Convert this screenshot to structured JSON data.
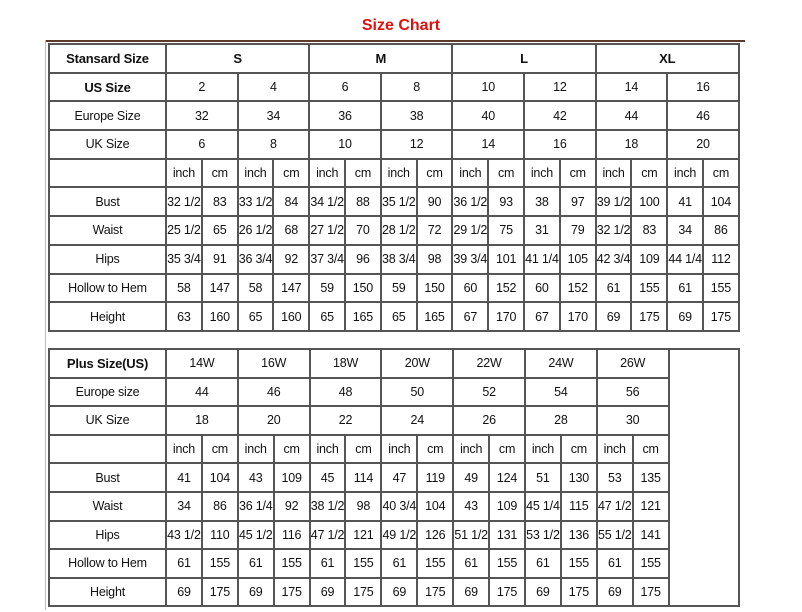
{
  "title": "Size Chart",
  "colors": {
    "title": "#e01010",
    "border": "#555555",
    "top_rule": "#5a3a2a"
  },
  "standard": {
    "header": "Stansard Size",
    "groups": [
      "S",
      "M",
      "L",
      "XL"
    ],
    "size_rows": [
      {
        "label": "US Size",
        "bold": true,
        "values": [
          "2",
          "4",
          "6",
          "8",
          "10",
          "12",
          "14",
          "16"
        ]
      },
      {
        "label": "Europe Size",
        "values": [
          "32",
          "34",
          "36",
          "38",
          "40",
          "42",
          "44",
          "46"
        ]
      },
      {
        "label": "UK Size",
        "values": [
          "6",
          "8",
          "10",
          "12",
          "14",
          "16",
          "18",
          "20"
        ]
      }
    ],
    "units": [
      "inch",
      "cm"
    ],
    "measurements": [
      {
        "label": "Bust",
        "values": [
          "32 1/2",
          "83",
          "33 1/2",
          "84",
          "34 1/2",
          "88",
          "35 1/2",
          "90",
          "36 1/2",
          "93",
          "38",
          "97",
          "39 1/2",
          "100",
          "41",
          "104"
        ]
      },
      {
        "label": "Waist",
        "values": [
          "25 1/2",
          "65",
          "26 1/2",
          "68",
          "27 1/2",
          "70",
          "28 1/2",
          "72",
          "29 1/2",
          "75",
          "31",
          "79",
          "32 1/2",
          "83",
          "34",
          "86"
        ]
      },
      {
        "label": "Hips",
        "values": [
          "35 3/4",
          "91",
          "36 3/4",
          "92",
          "37 3/4",
          "96",
          "38 3/4",
          "98",
          "39 3/4",
          "101",
          "41 1/4",
          "105",
          "42 3/4",
          "109",
          "44 1/4",
          "112"
        ]
      },
      {
        "label": "Hollow to Hem",
        "values": [
          "58",
          "147",
          "58",
          "147",
          "59",
          "150",
          "59",
          "150",
          "60",
          "152",
          "60",
          "152",
          "61",
          "155",
          "61",
          "155"
        ]
      },
      {
        "label": "Height",
        "values": [
          "63",
          "160",
          "65",
          "160",
          "65",
          "165",
          "65",
          "165",
          "67",
          "170",
          "67",
          "170",
          "69",
          "175",
          "69",
          "175"
        ]
      }
    ]
  },
  "plus": {
    "size_rows": [
      {
        "label": "Plus Size(US)",
        "bold": true,
        "values": [
          "14W",
          "16W",
          "18W",
          "20W",
          "22W",
          "24W",
          "26W"
        ]
      },
      {
        "label": "Europe size",
        "values": [
          "44",
          "46",
          "48",
          "50",
          "52",
          "54",
          "56"
        ]
      },
      {
        "label": "UK Size",
        "values": [
          "18",
          "20",
          "22",
          "24",
          "26",
          "28",
          "30"
        ]
      }
    ],
    "units": [
      "inch",
      "cm"
    ],
    "measurements": [
      {
        "label": "Bust",
        "values": [
          "41",
          "104",
          "43",
          "109",
          "45",
          "114",
          "47",
          "119",
          "49",
          "124",
          "51",
          "130",
          "53",
          "135"
        ]
      },
      {
        "label": "Waist",
        "values": [
          "34",
          "86",
          "36 1/4",
          "92",
          "38 1/2",
          "98",
          "40 3/4",
          "104",
          "43",
          "109",
          "45 1/4",
          "115",
          "47 1/2",
          "121"
        ]
      },
      {
        "label": "Hips",
        "values": [
          "43 1/2",
          "110",
          "45 1/2",
          "116",
          "47 1/2",
          "121",
          "49 1/2",
          "126",
          "51 1/2",
          "131",
          "53 1/2",
          "136",
          "55 1/2",
          "141"
        ]
      },
      {
        "label": "Hollow to Hem",
        "values": [
          "61",
          "155",
          "61",
          "155",
          "61",
          "155",
          "61",
          "155",
          "61",
          "155",
          "61",
          "155",
          "61",
          "155"
        ]
      },
      {
        "label": "Height",
        "values": [
          "69",
          "175",
          "69",
          "175",
          "69",
          "175",
          "69",
          "175",
          "69",
          "175",
          "69",
          "175",
          "69",
          "175"
        ]
      }
    ]
  }
}
